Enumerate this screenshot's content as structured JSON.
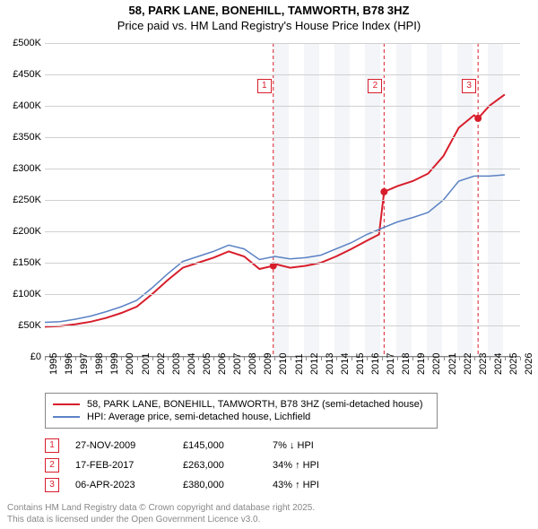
{
  "title_line1": "58, PARK LANE, BONEHILL, TAMWORTH, B78 3HZ",
  "title_line2": "Price paid vs. HM Land Registry's House Price Index (HPI)",
  "chart": {
    "type": "line",
    "background_color": "#ffffff",
    "grid_color": "#d0d0d0",
    "shade_color": "#e8ecf2",
    "x_min": 1995,
    "x_max": 2026,
    "x_ticks": [
      1995,
      1996,
      1997,
      1998,
      1999,
      2000,
      2001,
      2002,
      2003,
      2004,
      2005,
      2006,
      2007,
      2008,
      2009,
      2010,
      2011,
      2012,
      2013,
      2014,
      2015,
      2016,
      2017,
      2018,
      2019,
      2020,
      2021,
      2022,
      2023,
      2024,
      2025,
      2026
    ],
    "y_min": 0,
    "y_max": 500000,
    "y_ticks": [
      0,
      50000,
      100000,
      150000,
      200000,
      250000,
      300000,
      350000,
      400000,
      450000,
      500000
    ],
    "y_tick_labels": [
      "£0",
      "£50K",
      "£100K",
      "£150K",
      "£200K",
      "£250K",
      "£300K",
      "£350K",
      "£400K",
      "£450K",
      "£500K"
    ],
    "shade_bands": [
      [
        2009.9,
        2010.9
      ],
      [
        2011.9,
        2012.9
      ],
      [
        2013.9,
        2014.9
      ],
      [
        2015.9,
        2016.9
      ],
      [
        2017.9,
        2018.9
      ],
      [
        2019.9,
        2020.9
      ],
      [
        2021.9,
        2022.9
      ],
      [
        2023.9,
        2024.9
      ]
    ],
    "series": [
      {
        "name": "58, PARK LANE, BONEHILL, TAMWORTH, B78 3HZ (semi-detached house)",
        "color": "#d81e2c",
        "width": 2,
        "points": [
          [
            1995,
            48000
          ],
          [
            1996,
            49000
          ],
          [
            1997,
            52000
          ],
          [
            1998,
            56000
          ],
          [
            1999,
            62000
          ],
          [
            2000,
            70000
          ],
          [
            2001,
            80000
          ],
          [
            2002,
            100000
          ],
          [
            2003,
            122000
          ],
          [
            2004,
            142000
          ],
          [
            2005,
            150000
          ],
          [
            2006,
            158000
          ],
          [
            2007,
            168000
          ],
          [
            2008,
            160000
          ],
          [
            2009,
            140000
          ],
          [
            2009.9,
            145000
          ],
          [
            2010,
            148000
          ],
          [
            2011,
            142000
          ],
          [
            2012,
            145000
          ],
          [
            2013,
            150000
          ],
          [
            2014,
            160000
          ],
          [
            2015,
            172000
          ],
          [
            2016,
            185000
          ],
          [
            2016.8,
            195000
          ],
          [
            2017.13,
            263000
          ],
          [
            2018,
            272000
          ],
          [
            2019,
            280000
          ],
          [
            2020,
            292000
          ],
          [
            2021,
            320000
          ],
          [
            2022,
            365000
          ],
          [
            2023,
            385000
          ],
          [
            2023.26,
            380000
          ],
          [
            2024,
            400000
          ],
          [
            2025,
            418000
          ]
        ]
      },
      {
        "name": "HPI: Average price, semi-detached house, Lichfield",
        "color": "#5b82c4",
        "width": 1.5,
        "points": [
          [
            1995,
            55000
          ],
          [
            1996,
            56000
          ],
          [
            1997,
            60000
          ],
          [
            1998,
            65000
          ],
          [
            1999,
            72000
          ],
          [
            2000,
            80000
          ],
          [
            2001,
            90000
          ],
          [
            2002,
            110000
          ],
          [
            2003,
            132000
          ],
          [
            2004,
            152000
          ],
          [
            2005,
            160000
          ],
          [
            2006,
            168000
          ],
          [
            2007,
            178000
          ],
          [
            2008,
            172000
          ],
          [
            2009,
            155000
          ],
          [
            2010,
            160000
          ],
          [
            2011,
            156000
          ],
          [
            2012,
            158000
          ],
          [
            2013,
            162000
          ],
          [
            2014,
            172000
          ],
          [
            2015,
            182000
          ],
          [
            2016,
            195000
          ],
          [
            2017,
            205000
          ],
          [
            2018,
            215000
          ],
          [
            2019,
            222000
          ],
          [
            2020,
            230000
          ],
          [
            2021,
            250000
          ],
          [
            2022,
            280000
          ],
          [
            2023,
            288000
          ],
          [
            2024,
            288000
          ],
          [
            2025,
            290000
          ]
        ]
      }
    ],
    "event_lines": [
      {
        "n": "1",
        "x": 2009.9,
        "color": "#d81e2c"
      },
      {
        "n": "2",
        "x": 2017.13,
        "color": "#d81e2c"
      },
      {
        "n": "3",
        "x": 2023.26,
        "color": "#d81e2c"
      }
    ],
    "sale_markers": [
      {
        "x": 2009.9,
        "y": 145000,
        "color": "#d81e2c"
      },
      {
        "x": 2017.13,
        "y": 263000,
        "color": "#d81e2c"
      },
      {
        "x": 2023.26,
        "y": 380000,
        "color": "#d81e2c"
      }
    ]
  },
  "legend": [
    {
      "color": "#d81e2c",
      "width": 2,
      "label": "58, PARK LANE, BONEHILL, TAMWORTH, B78 3HZ (semi-detached house)"
    },
    {
      "color": "#5b82c4",
      "width": 1.5,
      "label": "HPI: Average price, semi-detached house, Lichfield"
    }
  ],
  "events": [
    {
      "n": "1",
      "color": "#d81e2c",
      "date": "27-NOV-2009",
      "price": "£145,000",
      "diff": "7% ↓ HPI"
    },
    {
      "n": "2",
      "color": "#d81e2c",
      "date": "17-FEB-2017",
      "price": "£263,000",
      "diff": "34% ↑ HPI"
    },
    {
      "n": "3",
      "color": "#d81e2c",
      "date": "06-APR-2023",
      "price": "£380,000",
      "diff": "43% ↑ HPI"
    }
  ],
  "footer_line1": "Contains HM Land Registry data © Crown copyright and database right 2025.",
  "footer_line2": "This data is licensed under the Open Government Licence v3.0."
}
